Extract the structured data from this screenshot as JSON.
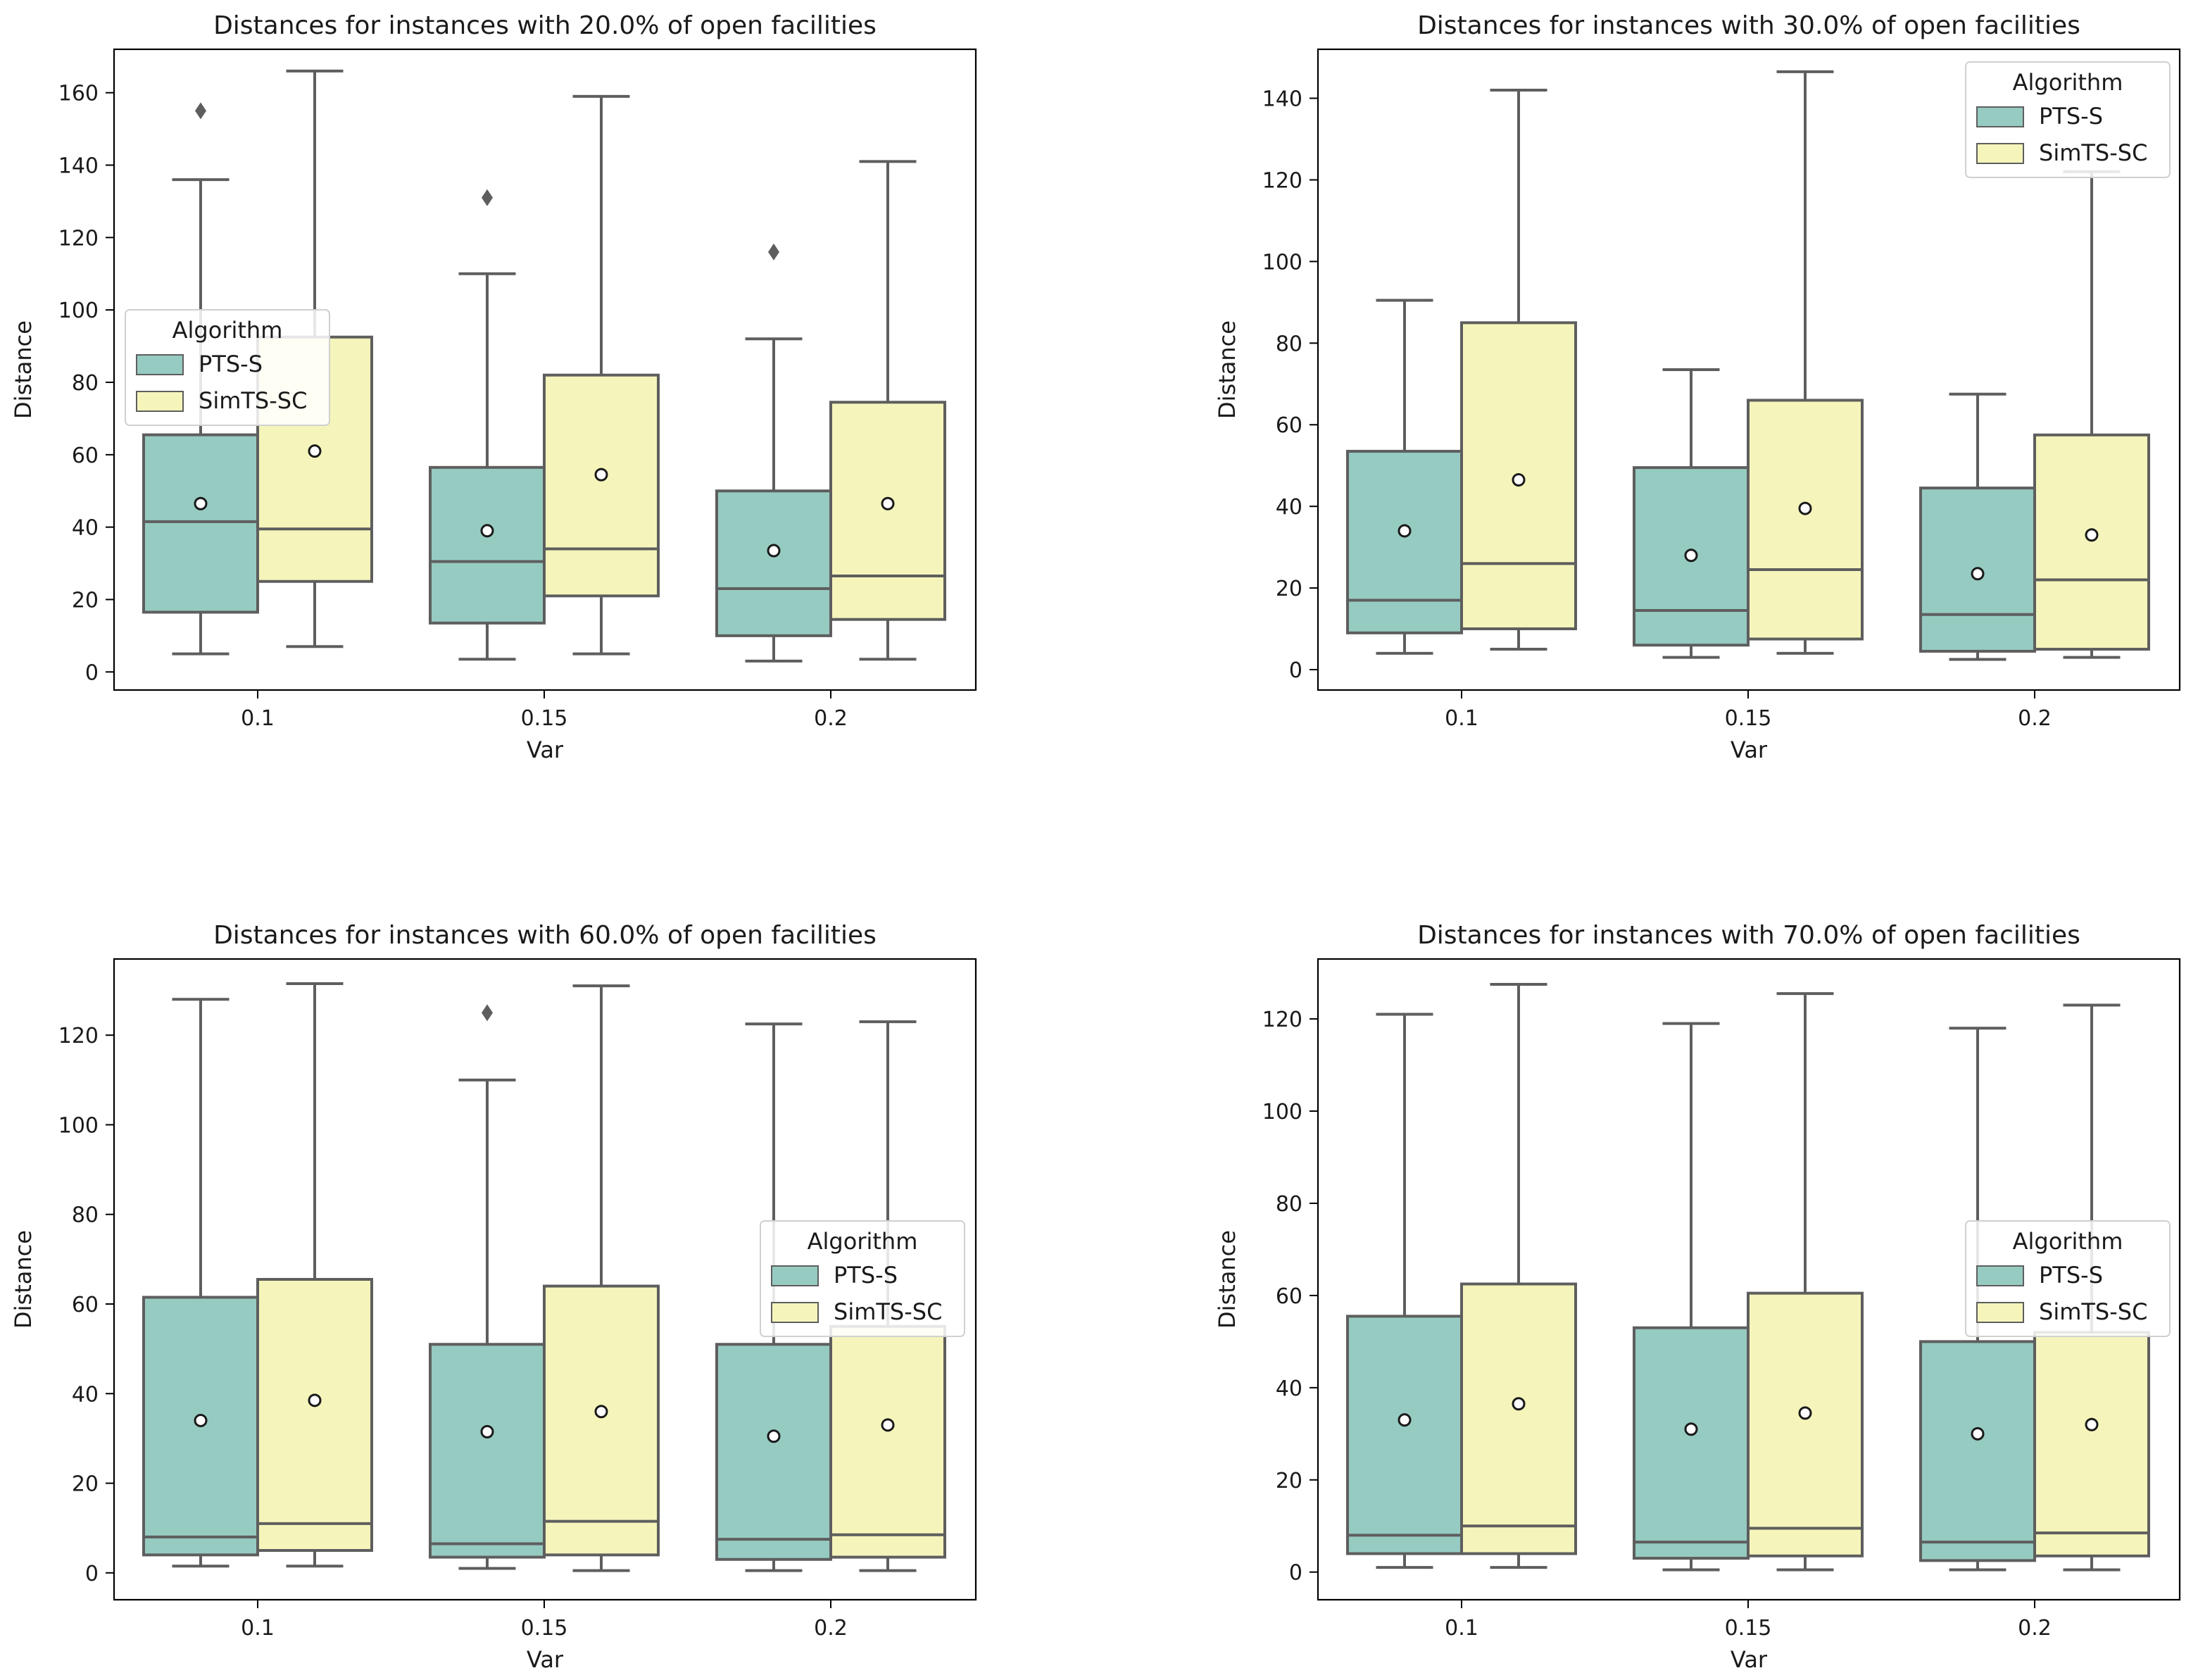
{
  "colors": {
    "pts_s": "#96cbc1",
    "simts_sc": "#f5f5bb",
    "line": "#5e5e5e",
    "axes": "#000000",
    "mean_fill": "#ffffff",
    "mean_edge": "#1a1a1a"
  },
  "legend": {
    "title": "Algorithm",
    "labels": [
      "PTS-S",
      "SimTS-SC"
    ]
  },
  "chart_data": [
    {
      "type": "box",
      "title": "Distances for instances with 20.0% of open facilities",
      "xlabel": "Var",
      "ylabel": "Distance",
      "categories": [
        "0.1",
        "0.15",
        "0.2"
      ],
      "ylim": [
        -5,
        172
      ],
      "yticks": [
        0,
        20,
        40,
        60,
        80,
        100,
        120,
        140,
        160
      ],
      "legend_position": "center-left",
      "series": [
        {
          "name": "PTS-S",
          "boxes": [
            {
              "whislo": 5,
              "q1": 16.5,
              "med": 41.5,
              "q3": 65.5,
              "whishi": 136,
              "mean": 46.5,
              "fliers": [
                155
              ]
            },
            {
              "whislo": 3.5,
              "q1": 13.5,
              "med": 30.5,
              "q3": 56.5,
              "whishi": 110,
              "mean": 39,
              "fliers": [
                131
              ]
            },
            {
              "whislo": 3,
              "q1": 10,
              "med": 23,
              "q3": 50,
              "whishi": 92,
              "mean": 33.5,
              "fliers": [
                116
              ]
            }
          ]
        },
        {
          "name": "SimTS-SC",
          "boxes": [
            {
              "whislo": 7,
              "q1": 25,
              "med": 39.5,
              "q3": 92.5,
              "whishi": 166,
              "mean": 61,
              "fliers": []
            },
            {
              "whislo": 5,
              "q1": 21,
              "med": 34,
              "q3": 82,
              "whishi": 159,
              "mean": 54.5,
              "fliers": []
            },
            {
              "whislo": 3.5,
              "q1": 14.5,
              "med": 26.5,
              "q3": 74.5,
              "whishi": 141,
              "mean": 46.5,
              "fliers": []
            }
          ]
        }
      ]
    },
    {
      "type": "box",
      "title": "Distances for instances with 30.0% of open facilities",
      "xlabel": "Var",
      "ylabel": "Distance",
      "categories": [
        "0.1",
        "0.15",
        "0.2"
      ],
      "ylim": [
        -5,
        152
      ],
      "yticks": [
        0,
        20,
        40,
        60,
        80,
        100,
        120,
        140
      ],
      "legend_position": "upper-right",
      "series": [
        {
          "name": "PTS-S",
          "boxes": [
            {
              "whislo": 4,
              "q1": 9,
              "med": 17,
              "q3": 53.5,
              "whishi": 90.5,
              "mean": 34,
              "fliers": []
            },
            {
              "whislo": 3,
              "q1": 6,
              "med": 14.5,
              "q3": 49.5,
              "whishi": 73.5,
              "mean": 28,
              "fliers": []
            },
            {
              "whislo": 2.5,
              "q1": 4.5,
              "med": 13.5,
              "q3": 44.5,
              "whishi": 67.5,
              "mean": 23.5,
              "fliers": []
            }
          ]
        },
        {
          "name": "SimTS-SC",
          "boxes": [
            {
              "whislo": 5,
              "q1": 10,
              "med": 26,
              "q3": 85,
              "whishi": 142,
              "mean": 46.5,
              "fliers": []
            },
            {
              "whislo": 4,
              "q1": 7.5,
              "med": 24.5,
              "q3": 66,
              "whishi": 146.5,
              "mean": 39.5,
              "fliers": []
            },
            {
              "whislo": 3,
              "q1": 5,
              "med": 22,
              "q3": 57.5,
              "whishi": 122,
              "mean": 33,
              "fliers": []
            }
          ]
        }
      ]
    },
    {
      "type": "box",
      "title": "Distances for instances with 60.0% of open facilities",
      "xlabel": "Var",
      "ylabel": "Distance",
      "categories": [
        "0.1",
        "0.15",
        "0.2"
      ],
      "ylim": [
        -6,
        137
      ],
      "yticks": [
        0,
        20,
        40,
        60,
        80,
        100,
        120
      ],
      "legend_position": "center-right",
      "series": [
        {
          "name": "PTS-S",
          "boxes": [
            {
              "whislo": 1.5,
              "q1": 4,
              "med": 8,
              "q3": 61.5,
              "whishi": 128,
              "mean": 34,
              "fliers": []
            },
            {
              "whislo": 1,
              "q1": 3.5,
              "med": 6.5,
              "q3": 51,
              "whishi": 110,
              "mean": 31.5,
              "fliers": [
                125
              ]
            },
            {
              "whislo": 0.5,
              "q1": 3,
              "med": 7.5,
              "q3": 51,
              "whishi": 122.5,
              "mean": 30.5,
              "fliers": []
            }
          ]
        },
        {
          "name": "SimTS-SC",
          "boxes": [
            {
              "whislo": 1.5,
              "q1": 5,
              "med": 11,
              "q3": 65.5,
              "whishi": 131.5,
              "mean": 38.5,
              "fliers": []
            },
            {
              "whislo": 0.5,
              "q1": 4,
              "med": 11.5,
              "q3": 64,
              "whishi": 131,
              "mean": 36,
              "fliers": []
            },
            {
              "whislo": 0.5,
              "q1": 3.5,
              "med": 8.5,
              "q3": 55,
              "whishi": 123,
              "mean": 33,
              "fliers": []
            }
          ]
        }
      ]
    },
    {
      "type": "box",
      "title": "Distances for instances with 70.0% of open facilities",
      "xlabel": "Var",
      "ylabel": "Distance",
      "categories": [
        "0.1",
        "0.15",
        "0.2"
      ],
      "ylim": [
        -6,
        133
      ],
      "yticks": [
        0,
        20,
        40,
        60,
        80,
        100,
        120
      ],
      "legend_position": "center-right",
      "series": [
        {
          "name": "PTS-S",
          "boxes": [
            {
              "whislo": 1,
              "q1": 4,
              "med": 8,
              "q3": 55.5,
              "whishi": 121,
              "mean": 33,
              "fliers": []
            },
            {
              "whislo": 0.5,
              "q1": 3,
              "med": 6.5,
              "q3": 53,
              "whishi": 119,
              "mean": 31,
              "fliers": []
            },
            {
              "whislo": 0.5,
              "q1": 2.5,
              "med": 6.5,
              "q3": 50,
              "whishi": 118,
              "mean": 30,
              "fliers": []
            }
          ]
        },
        {
          "name": "SimTS-SC",
          "boxes": [
            {
              "whislo": 1,
              "q1": 4,
              "med": 10,
              "q3": 62.5,
              "whishi": 127.5,
              "mean": 36.5,
              "fliers": []
            },
            {
              "whislo": 0.5,
              "q1": 3.5,
              "med": 9.5,
              "q3": 60.5,
              "whishi": 125.5,
              "mean": 34.5,
              "fliers": []
            },
            {
              "whislo": 0.5,
              "q1": 3.5,
              "med": 8.5,
              "q3": 52,
              "whishi": 123,
              "mean": 32,
              "fliers": []
            }
          ]
        }
      ]
    }
  ]
}
